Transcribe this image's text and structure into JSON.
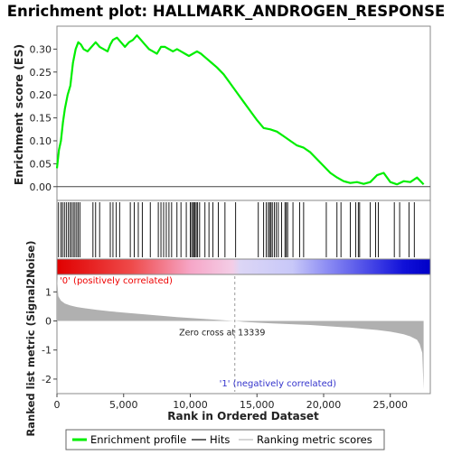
{
  "chart_data": {
    "type": "line",
    "title": "Enrichment plot: HALLMARK_ANDROGEN_RESPONSE",
    "es_panel": {
      "ylabel": "Enrichment score (ES)",
      "ylim": [
        -0.03,
        0.35
      ],
      "yticks": [
        0.0,
        0.05,
        0.1,
        0.15,
        0.2,
        0.25,
        0.3
      ],
      "ytick_labels": [
        "0.00",
        "0.05",
        "0.10",
        "0.15",
        "0.20",
        "0.25",
        "0.30"
      ],
      "series_name": "Enrichment profile",
      "color": "#00ee00",
      "x": [
        0,
        150,
        300,
        450,
        600,
        800,
        1000,
        1200,
        1400,
        1600,
        1800,
        2000,
        2300,
        2600,
        2900,
        3200,
        3500,
        3800,
        4000,
        4200,
        4500,
        4800,
        5100,
        5400,
        5700,
        6000,
        6300,
        6600,
        6900,
        7200,
        7500,
        7800,
        8100,
        8400,
        8700,
        9000,
        9300,
        9600,
        9900,
        10200,
        10500,
        10800,
        11200,
        11600,
        12000,
        12500,
        13000,
        13500,
        14000,
        14500,
        15000,
        15500,
        16000,
        16500,
        17000,
        17500,
        18000,
        18500,
        19000,
        19500,
        20000,
        20500,
        21000,
        21500,
        22000,
        22500,
        23000,
        23500,
        24000,
        24500,
        25000,
        25500,
        26000,
        26500,
        27000,
        27500
      ],
      "y": [
        0.04,
        0.08,
        0.1,
        0.14,
        0.17,
        0.2,
        0.22,
        0.27,
        0.3,
        0.315,
        0.31,
        0.3,
        0.295,
        0.305,
        0.315,
        0.305,
        0.3,
        0.295,
        0.31,
        0.32,
        0.325,
        0.315,
        0.305,
        0.315,
        0.32,
        0.33,
        0.32,
        0.31,
        0.3,
        0.295,
        0.29,
        0.305,
        0.305,
        0.3,
        0.295,
        0.3,
        0.295,
        0.29,
        0.285,
        0.29,
        0.295,
        0.29,
        0.28,
        0.27,
        0.26,
        0.245,
        0.225,
        0.205,
        0.185,
        0.165,
        0.145,
        0.128,
        0.125,
        0.12,
        0.11,
        0.1,
        0.09,
        0.085,
        0.075,
        0.06,
        0.045,
        0.03,
        0.02,
        0.012,
        0.008,
        0.01,
        0.006,
        0.01,
        0.025,
        0.03,
        0.01,
        0.005,
        0.012,
        0.01,
        0.02,
        0.005
      ]
    },
    "hits": [
      120,
      300,
      420,
      560,
      700,
      850,
      980,
      1100,
      1230,
      1350,
      1480,
      1600,
      1720,
      2700,
      2900,
      3200,
      4000,
      4200,
      4450,
      4700,
      5500,
      5800,
      6100,
      6400,
      7000,
      7600,
      7800,
      8000,
      8200,
      8400,
      8600,
      9000,
      9300,
      9700,
      10000,
      10100,
      10200,
      10300,
      10350,
      10450,
      10550,
      10700,
      11100,
      11400,
      11700,
      12100,
      12600,
      13400,
      15100,
      15500,
      15700,
      15850,
      15950,
      16050,
      16150,
      16300,
      16450,
      16600,
      16850,
      17100,
      17200,
      17300,
      17700,
      18200,
      18500,
      20200,
      21000,
      21300,
      22000,
      22400,
      22600,
      22700,
      23500,
      23900,
      24100,
      25300,
      25700,
      26400,
      26800
    ],
    "hits_label": "Hits",
    "ranking_panel": {
      "ylabel": "Ranked list metric (Signal2Noise)",
      "ylim": [
        -2.5,
        1.6
      ],
      "yticks": [
        -2,
        -1,
        0,
        1
      ],
      "ytick_labels": [
        "-2",
        "-1",
        "0",
        "1"
      ],
      "series_name": "Ranking metric scores",
      "x": [
        0,
        100,
        300,
        600,
        1000,
        1500,
        2000,
        3000,
        4000,
        5000,
        6000,
        7000,
        8000,
        9000,
        10000,
        11000,
        12000,
        13000,
        13339,
        14000,
        15000,
        16000,
        17000,
        18000,
        19000,
        20000,
        21000,
        22000,
        23000,
        24000,
        25000,
        25500,
        26000,
        26500,
        27000,
        27200,
        27400,
        27500
      ],
      "y": [
        1.5,
        0.85,
        0.7,
        0.6,
        0.53,
        0.48,
        0.44,
        0.38,
        0.33,
        0.29,
        0.25,
        0.21,
        0.17,
        0.13,
        0.1,
        0.07,
        0.04,
        0.01,
        0.0,
        -0.03,
        -0.06,
        -0.08,
        -0.1,
        -0.12,
        -0.14,
        -0.17,
        -0.2,
        -0.23,
        -0.27,
        -0.31,
        -0.37,
        -0.41,
        -0.46,
        -0.53,
        -0.65,
        -0.8,
        -1.1,
        -2.35
      ],
      "zero_cross_label": "Zero cross at 13339",
      "zero_cross_x": 13339,
      "pos_label": "'0' (positively correlated)",
      "neg_label": "'1' (negatively correlated)"
    },
    "xaxis": {
      "label": "Rank in Ordered Dataset",
      "xlim": [
        0,
        28000
      ],
      "ticks": [
        0,
        5000,
        10000,
        15000,
        20000,
        25000
      ],
      "tick_labels": [
        "0",
        "5,000",
        "10,000",
        "15,000",
        "20,000",
        "25,000"
      ]
    },
    "legend": {
      "placement": "bottom",
      "items": [
        {
          "label": "Enrichment profile",
          "color": "#00ee00"
        },
        {
          "label": "Hits",
          "color": "#000000"
        },
        {
          "label": "Ranking metric scores",
          "color": "#bbbbbb"
        }
      ]
    },
    "colors": {
      "positive": "#ee0000",
      "negative": "#0000ee",
      "ranking_fill": "#b0b0b0"
    }
  }
}
